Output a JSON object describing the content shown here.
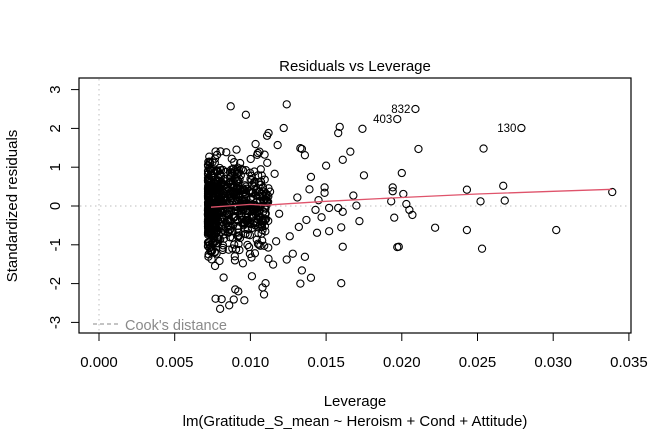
{
  "chart_data": {
    "type": "scatter",
    "title": "Residuals vs Leverage",
    "xlabel": "Leverage",
    "ylabel": "Standardized residuals",
    "subtitle": "lm(Gratitude_S_mean ~ Heroism + Cond + Attitude)",
    "xlim": [
      -0.0013,
      0.0353
    ],
    "ylim": [
      -3.3,
      3.3
    ],
    "x_ticks": [
      0.0,
      0.005,
      0.01,
      0.015,
      0.02,
      0.025,
      0.03,
      0.035
    ],
    "x_tick_labels": [
      "0.000",
      "0.005",
      "0.010",
      "0.015",
      "0.020",
      "0.025",
      "0.030",
      "0.035"
    ],
    "y_ticks": [
      -3,
      -2,
      -1,
      0,
      1,
      2,
      3
    ],
    "y_tick_labels": [
      "-3",
      "-2",
      "-1",
      "0",
      "1",
      "2",
      "3"
    ],
    "grid": false,
    "reference_lines": {
      "horizontal_dotted_at": 0,
      "vertical_dotted_at": 0
    },
    "legend": {
      "position": "bottom-left",
      "entries": [
        {
          "label": "Cook's distance",
          "style": "dashed",
          "color": "#8a8a8a"
        }
      ]
    },
    "colors": {
      "points": "#000000",
      "smooth_line": "#df536b",
      "reference": "#bebebe",
      "legend": "#8a8a8a"
    },
    "labeled_points": [
      {
        "label": "832",
        "x": 0.0209,
        "y": 2.5
      },
      {
        "label": "403",
        "x": 0.0197,
        "y": 2.24
      },
      {
        "label": "130",
        "x": 0.0279,
        "y": 2.01
      }
    ],
    "points": [
      [
        0.0339,
        0.36
      ],
      [
        0.0302,
        -0.62
      ],
      [
        0.0254,
        1.48
      ],
      [
        0.0267,
        0.52
      ],
      [
        0.0268,
        0.14
      ],
      [
        0.0252,
        0.12
      ],
      [
        0.0243,
        0.42
      ],
      [
        0.0243,
        -0.62
      ],
      [
        0.0253,
        -1.1
      ],
      [
        0.0222,
        -0.56
      ],
      [
        0.0211,
        1.47
      ],
      [
        0.02,
        0.85
      ],
      [
        0.0194,
        0.48
      ],
      [
        0.0194,
        0.38
      ],
      [
        0.0193,
        0.12
      ],
      [
        0.0201,
        0.31
      ],
      [
        0.0203,
        0.05
      ],
      [
        0.0205,
        -0.1
      ],
      [
        0.0207,
        -0.23
      ],
      [
        0.0195,
        -0.3
      ],
      [
        0.0198,
        -1.05
      ],
      [
        0.0197,
        -1.06
      ],
      [
        0.0174,
        1.99
      ],
      [
        0.0159,
        2.04
      ],
      [
        0.0158,
        1.88
      ],
      [
        0.0166,
        1.4
      ],
      [
        0.0161,
        1.19
      ],
      [
        0.0175,
        0.79
      ],
      [
        0.0168,
        0.27
      ],
      [
        0.017,
        0.01
      ],
      [
        0.0158,
        -0.05
      ],
      [
        0.0161,
        -0.15
      ],
      [
        0.0172,
        -0.39
      ],
      [
        0.016,
        -0.55
      ],
      [
        0.0161,
        -1.05
      ],
      [
        0.016,
        -1.99
      ],
      [
        0.015,
        1.04
      ],
      [
        0.0149,
        0.48
      ],
      [
        0.0149,
        0.34
      ],
      [
        0.0145,
        0.15
      ],
      [
        0.0152,
        -0.05
      ],
      [
        0.0147,
        -0.29
      ],
      [
        0.0152,
        -0.65
      ],
      [
        0.0143,
        -0.1
      ],
      [
        0.014,
        0.75
      ],
      [
        0.0139,
        0.43
      ],
      [
        0.0136,
        1.31
      ],
      [
        0.0134,
        1.47
      ],
      [
        0.0133,
        1.49
      ],
      [
        0.0131,
        0.22
      ],
      [
        0.0137,
        -0.36
      ],
      [
        0.0132,
        -0.54
      ],
      [
        0.0128,
        -1.23
      ],
      [
        0.0126,
        -0.78
      ],
      [
        0.0136,
        -1.31
      ],
      [
        0.014,
        -1.85
      ],
      [
        0.0144,
        -0.69
      ],
      [
        0.0134,
        -1.66
      ],
      [
        0.0133,
        -2.0
      ],
      [
        0.0124,
        2.62
      ],
      [
        0.0122,
        2.01
      ],
      [
        0.0118,
        1.57
      ],
      [
        0.0116,
        0.83
      ],
      [
        0.0113,
        0.37
      ],
      [
        0.0119,
        -0.2
      ],
      [
        0.0117,
        -0.91
      ],
      [
        0.0115,
        -1.51
      ],
      [
        0.0124,
        -1.38
      ],
      [
        0.011,
        -1.99
      ],
      [
        0.0108,
        -2.1
      ],
      [
        0.0109,
        -2.28
      ],
      [
        0.0097,
        2.35
      ],
      [
        0.0087,
        2.57
      ],
      [
        0.009,
        -2.15
      ],
      [
        0.0089,
        -2.41
      ],
      [
        0.0092,
        -2.2
      ],
      [
        0.0086,
        -2.56
      ],
      [
        0.0096,
        -2.43
      ],
      [
        0.0081,
        -2.4
      ],
      [
        0.0077,
        -2.39
      ],
      [
        0.008,
        -2.65
      ],
      [
        0.0112,
        1.88
      ],
      [
        0.0111,
        1.81
      ],
      [
        0.0106,
        1.4
      ],
      [
        0.0107,
        0.62
      ],
      [
        0.0104,
        0.09
      ],
      [
        0.0105,
        -0.55
      ],
      [
        0.0103,
        -1.22
      ],
      [
        0.0101,
        -1.81
      ]
    ],
    "dense_cloud": {
      "x_range": [
        0.0072,
        0.0112
      ],
      "y_range": [
        -2.0,
        2.05
      ],
      "approx_count": 700
    },
    "smooth_line": [
      [
        0.0074,
        -0.03
      ],
      [
        0.0085,
        0.0
      ],
      [
        0.01,
        0.04
      ],
      [
        0.011,
        0.02
      ],
      [
        0.0125,
        0.06
      ],
      [
        0.015,
        0.12
      ],
      [
        0.02,
        0.22
      ],
      [
        0.025,
        0.31
      ],
      [
        0.03,
        0.38
      ],
      [
        0.0339,
        0.43
      ]
    ]
  }
}
